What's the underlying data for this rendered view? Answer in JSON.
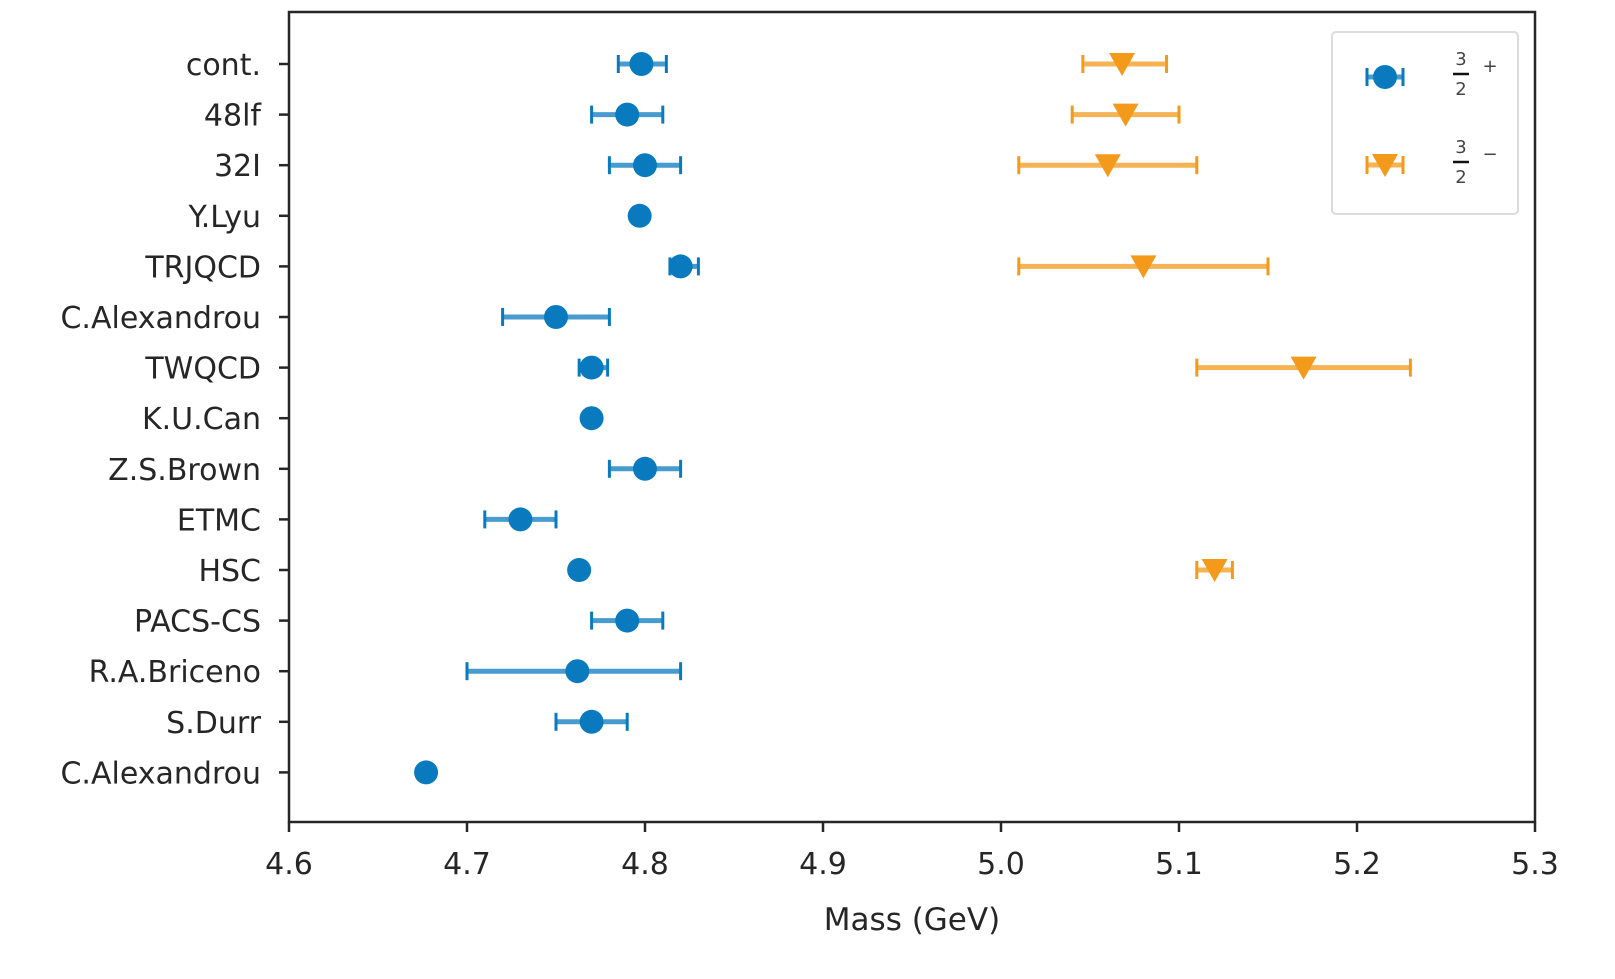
{
  "chart_data": {
    "type": "scatter",
    "subtype": "horizontal-errorbar",
    "title": "",
    "xlabel": "Mass (GeV)",
    "ylabel": "",
    "xlim": [
      4.6,
      5.3
    ],
    "xticks": [
      "4.6",
      "4.7",
      "4.8",
      "4.9",
      "5.0",
      "5.1",
      "5.2",
      "5.3"
    ],
    "grid": false,
    "legend_position": "top-right",
    "categories": [
      "cont.",
      "48lf",
      "32I",
      "Y.Lyu",
      "TRJQCD",
      "C.Alexandrou",
      "TWQCD",
      "K.U.Can",
      "Z.S.Brown",
      "ETMC",
      "HSC",
      "PACS-CS",
      "R.A.Briceno",
      "S.Durr",
      "C.Alexandrou"
    ],
    "series": [
      {
        "name": "3/2 +",
        "legend_num": "3",
        "legend_den": "2",
        "legend_sign": "+",
        "marker": "circle",
        "color": "#0a7abf",
        "points": [
          {
            "category": "cont.",
            "value": 4.798,
            "err_low": 4.785,
            "err_high": 4.812
          },
          {
            "category": "48lf",
            "value": 4.79,
            "err_low": 4.77,
            "err_high": 4.81
          },
          {
            "category": "32I",
            "value": 4.8,
            "err_low": 4.78,
            "err_high": 4.82
          },
          {
            "category": "Y.Lyu",
            "value": 4.797,
            "err_low": null,
            "err_high": null
          },
          {
            "category": "TRJQCD",
            "value": 4.82,
            "err_low": 4.814,
            "err_high": 4.83
          },
          {
            "category": "C.Alexandrou",
            "value": 4.75,
            "err_low": 4.72,
            "err_high": 4.78
          },
          {
            "category": "TWQCD",
            "value": 4.77,
            "err_low": 4.763,
            "err_high": 4.779
          },
          {
            "category": "K.U.Can",
            "value": 4.77,
            "err_low": null,
            "err_high": null
          },
          {
            "category": "Z.S.Brown",
            "value": 4.8,
            "err_low": 4.78,
            "err_high": 4.82
          },
          {
            "category": "ETMC",
            "value": 4.73,
            "err_low": 4.71,
            "err_high": 4.75
          },
          {
            "category": "HSC",
            "value": 4.763,
            "err_low": null,
            "err_high": null
          },
          {
            "category": "PACS-CS",
            "value": 4.79,
            "err_low": 4.77,
            "err_high": 4.81
          },
          {
            "category": "R.A.Briceno",
            "value": 4.762,
            "err_low": 4.7,
            "err_high": 4.82
          },
          {
            "category": "S.Durr",
            "value": 4.77,
            "err_low": 4.75,
            "err_high": 4.79
          },
          {
            "category": "C.Alexandrou",
            "value": 4.677,
            "err_low": null,
            "err_high": null
          }
        ]
      },
      {
        "name": "3/2 -",
        "legend_num": "3",
        "legend_den": "2",
        "legend_sign": "−",
        "marker": "triangle-down",
        "color": "#f39a1a",
        "points": [
          {
            "category": "cont.",
            "index": 0,
            "value": 5.068,
            "err_low": 5.046,
            "err_high": 5.093
          },
          {
            "category": "48lf",
            "index": 1,
            "value": 5.07,
            "err_low": 5.04,
            "err_high": 5.1
          },
          {
            "category": "32I",
            "index": 2,
            "value": 5.06,
            "err_low": 5.01,
            "err_high": 5.11
          },
          {
            "category": "TRJQCD",
            "index": 4,
            "value": 5.08,
            "err_low": 5.01,
            "err_high": 5.15
          },
          {
            "category": "TWQCD",
            "index": 6,
            "value": 5.17,
            "err_low": 5.11,
            "err_high": 5.23
          },
          {
            "category": "HSC",
            "index": 10,
            "value": 5.12,
            "err_low": 5.11,
            "err_high": 5.13
          }
        ]
      }
    ]
  }
}
